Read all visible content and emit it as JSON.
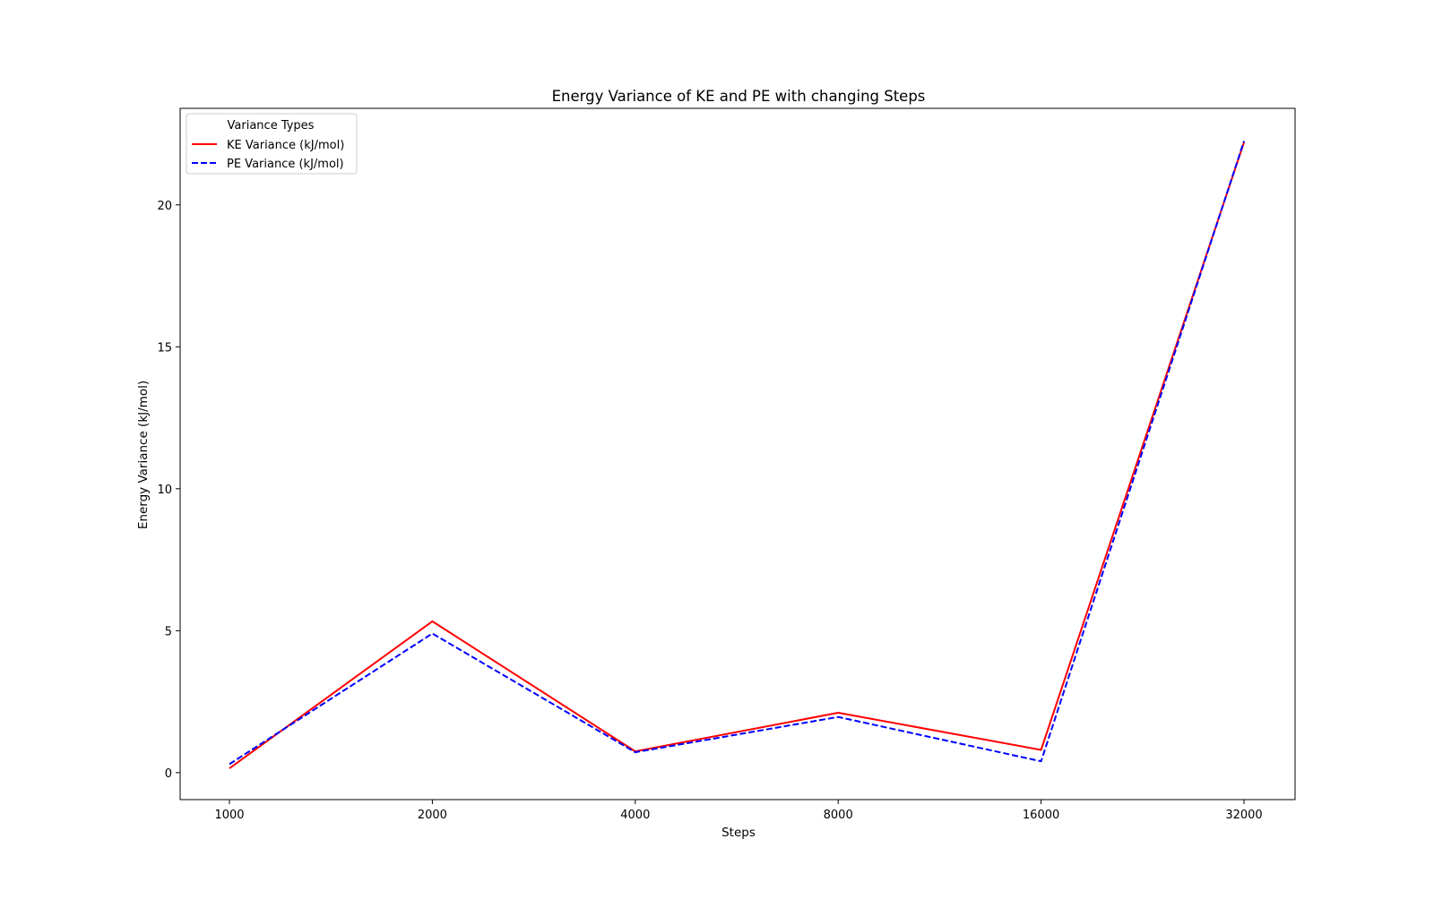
{
  "chart_data": {
    "type": "line",
    "title": "Energy Variance of KE and PE with changing Steps",
    "xlabel": "Steps",
    "ylabel": "Energy Variance (kJ/mol)",
    "categories": [
      "1000",
      "2000",
      "4000",
      "8000",
      "16000",
      "32000"
    ],
    "y_ticks": [
      "0",
      "5",
      "10",
      "15",
      "20"
    ],
    "ylim": [
      -0.95,
      23.4
    ],
    "grid": false,
    "legend": {
      "title": "Variance Types",
      "placement": "top-left"
    },
    "series": [
      {
        "name": "KE Variance (kJ/mol)",
        "color": "#ff0000",
        "line_style": "solid",
        "values": [
          0.15,
          5.33,
          0.75,
          2.11,
          0.8,
          22.2
        ]
      },
      {
        "name": "PE Variance (kJ/mol)",
        "color": "#0000ff",
        "line_style": "dashed",
        "values": [
          0.3,
          4.9,
          0.72,
          1.96,
          0.4,
          22.25
        ]
      }
    ]
  }
}
